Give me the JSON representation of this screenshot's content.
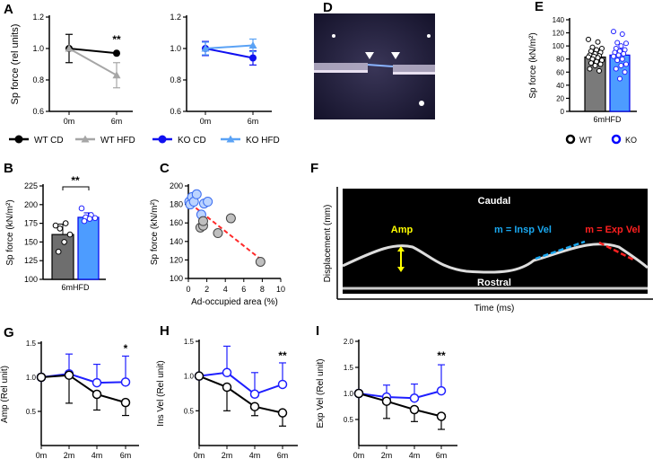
{
  "panel_letters": [
    "A",
    "B",
    "C",
    "D",
    "E",
    "F",
    "G",
    "H",
    "I"
  ],
  "chart_data": [
    {
      "id": "A_left",
      "type": "line",
      "ylabel": "Sp force (rel units)",
      "ylim": [
        0.6,
        1.2
      ],
      "yticks": [
        "0.6",
        "0.8",
        "1.0",
        "1.2"
      ],
      "categories": [
        "0m",
        "6m"
      ],
      "series": [
        {
          "name": "WT CD",
          "color": "#000000",
          "marker": "circle",
          "values": [
            1.0,
            0.97
          ],
          "error": [
            0.09,
            0
          ],
          "error_dir": "both"
        },
        {
          "name": "WT HFD",
          "color": "#a6a6a6",
          "marker": "triangle",
          "values": [
            1.0,
            0.83
          ],
          "error": [
            0,
            0.08
          ],
          "error_dir": "both"
        }
      ],
      "annotations": [
        {
          "text": "**",
          "index": 1
        }
      ]
    },
    {
      "id": "A_right",
      "type": "line",
      "ylabel": "",
      "ylim": [
        0.6,
        1.2
      ],
      "yticks": [
        "0.6",
        "0.8",
        "1.0",
        "1.2"
      ],
      "categories": [
        "0m",
        "6m"
      ],
      "series": [
        {
          "name": "KO CD",
          "color": "#1010f0",
          "marker": "circle",
          "values": [
            1.0,
            0.94
          ],
          "error": [
            0.045,
            0.045
          ],
          "error_dir": "both"
        },
        {
          "name": "KO HFD",
          "color": "#5aa2f5",
          "marker": "triangle",
          "values": [
            1.0,
            1.02
          ],
          "error": [
            0.04,
            0.04
          ],
          "error_dir": "both"
        }
      ],
      "annotations": []
    },
    {
      "id": "B",
      "type": "bar",
      "ylabel": "Sp force (kN/m²)",
      "ylim": [
        100,
        225
      ],
      "yticks": [
        "100",
        "125",
        "150",
        "175",
        "200",
        "225"
      ],
      "xlabel": "6mHFD",
      "series": [
        {
          "name": "WT",
          "color": "#6e6e6e",
          "value": 160,
          "error": 14,
          "points": [
            172,
            175,
            168,
            160,
            150,
            137
          ]
        },
        {
          "name": "KO",
          "color": "#4d9cff",
          "value": 183,
          "error": 6,
          "points": [
            195,
            186,
            183,
            182,
            181,
            178
          ]
        }
      ],
      "annotations": [
        {
          "text": "**"
        }
      ]
    },
    {
      "id": "C",
      "type": "scatter",
      "ylabel": "Sp force (kN/m²)",
      "xlabel": "Ad-occupied area (%)",
      "xlim": [
        0,
        10
      ],
      "ylim": [
        100,
        200
      ],
      "xticks": [
        "0",
        "2",
        "4",
        "6",
        "8",
        "10"
      ],
      "yticks": [
        "100",
        "120",
        "140",
        "160",
        "180",
        "200"
      ],
      "series": [
        {
          "name": "KO",
          "color": "#bcd4ff",
          "stroke": "#3a6cf0",
          "points": [
            [
              0.1,
              183
            ],
            [
              0.2,
              180
            ],
            [
              0.4,
              188
            ],
            [
              0.6,
              183
            ],
            [
              0.9,
              191
            ],
            [
              1.4,
              169
            ],
            [
              1.7,
              181
            ],
            [
              2.1,
              183
            ]
          ]
        },
        {
          "name": "WT",
          "color": "#bfbfbf",
          "stroke": "#444444",
          "points": [
            [
              1.3,
              155
            ],
            [
              1.6,
              157
            ],
            [
              1.6,
              162
            ],
            [
              3.2,
              149
            ],
            [
              4.6,
              165
            ],
            [
              7.8,
              118
            ]
          ]
        }
      ],
      "trendline": {
        "color": "#ff2a2a",
        "from": [
          0.2,
          181
        ],
        "to": [
          7.8,
          121
        ]
      }
    },
    {
      "id": "E",
      "type": "bar",
      "ylabel": "Sp force (kN/m²)",
      "ylim": [
        0,
        140
      ],
      "yticks": [
        "0",
        "20",
        "40",
        "60",
        "80",
        "100",
        "120",
        "140"
      ],
      "xlabel": "6mHFD",
      "series": [
        {
          "name": "WT",
          "color": "#7a7a7a",
          "value": 83,
          "error": 12,
          "points": [
            110,
            106,
            98,
            96,
            94,
            92,
            90,
            88,
            86,
            85,
            84,
            83,
            82,
            80,
            78,
            76,
            74,
            72,
            70,
            65,
            62
          ]
        },
        {
          "name": "KO",
          "color": "#4d9cff",
          "value": 86,
          "error": 9,
          "points": [
            122,
            118,
            105,
            104,
            100,
            96,
            94,
            92,
            90,
            88,
            86,
            84,
            80,
            78,
            72,
            70,
            65,
            60,
            50
          ]
        }
      ],
      "legend": [
        "WT",
        "KO"
      ]
    },
    {
      "id": "G",
      "type": "line",
      "ylabel": "Amp (Rel unit)",
      "ylim": [
        0,
        1.5
      ],
      "yticks": [
        "0.5",
        "1.0",
        "1.5"
      ],
      "categories": [
        "0m",
        "2m",
        "4m",
        "6m"
      ],
      "series": [
        {
          "name": "KO",
          "color": "#1f1fff",
          "marker": "open-circle",
          "values": [
            1.0,
            1.05,
            0.92,
            0.93
          ],
          "error": [
            0,
            0.29,
            0.27,
            0.38
          ],
          "error_dir": "up"
        },
        {
          "name": "WT",
          "color": "#000000",
          "marker": "open-circle",
          "values": [
            1.0,
            1.03,
            0.75,
            0.63
          ],
          "error": [
            0,
            0.41,
            0.23,
            0.19
          ],
          "error_dir": "down"
        }
      ],
      "annotations": [
        {
          "text": "*",
          "index": 3
        }
      ]
    },
    {
      "id": "H",
      "type": "line",
      "ylabel": "Ins Vel (Rel unit)",
      "ylim": [
        0,
        1.5
      ],
      "yticks": [
        "0.5",
        "1.0",
        "1.5"
      ],
      "categories": [
        "0m",
        "2m",
        "4m",
        "6m"
      ],
      "series": [
        {
          "name": "KO",
          "color": "#1f1fff",
          "marker": "open-circle",
          "values": [
            1.0,
            1.05,
            0.74,
            0.88
          ],
          "error": [
            0,
            0.38,
            0.31,
            0.31
          ],
          "error_dir": "up"
        },
        {
          "name": "WT",
          "color": "#000000",
          "marker": "open-circle",
          "values": [
            1.0,
            0.84,
            0.56,
            0.47
          ],
          "error": [
            0,
            0.34,
            0.13,
            0.19
          ],
          "error_dir": "down"
        }
      ],
      "annotations": [
        {
          "text": "**",
          "index": 3
        }
      ]
    },
    {
      "id": "I",
      "type": "line",
      "ylabel": "Exp Vel (Rel unit)",
      "ylim": [
        0,
        2.0
      ],
      "yticks": [
        "0.5",
        "1.0",
        "1.5",
        "2.0"
      ],
      "categories": [
        "0m",
        "2m",
        "4m",
        "6m"
      ],
      "series": [
        {
          "name": "KO",
          "color": "#1f1fff",
          "marker": "open-circle",
          "values": [
            1.0,
            0.93,
            0.91,
            1.05
          ],
          "error": [
            0,
            0.23,
            0.27,
            0.5
          ],
          "error_dir": "up"
        },
        {
          "name": "WT",
          "color": "#000000",
          "marker": "open-circle",
          "values": [
            1.0,
            0.85,
            0.69,
            0.56
          ],
          "error": [
            0,
            0.33,
            0.23,
            0.25
          ],
          "error_dir": "down"
        }
      ],
      "annotations": [
        {
          "text": "**",
          "index": 3
        }
      ]
    }
  ],
  "legend_A": [
    "WT CD",
    "WT HFD",
    "KO CD",
    "KO HFD"
  ],
  "panel_F": {
    "top": "Caudal",
    "bottom": "Rostral",
    "amp": "Amp",
    "insp": "m = Insp Vel",
    "exp": "m = Exp Vel",
    "ylabel": "Displacement (mm)",
    "xlabel": "Time (ms)"
  }
}
